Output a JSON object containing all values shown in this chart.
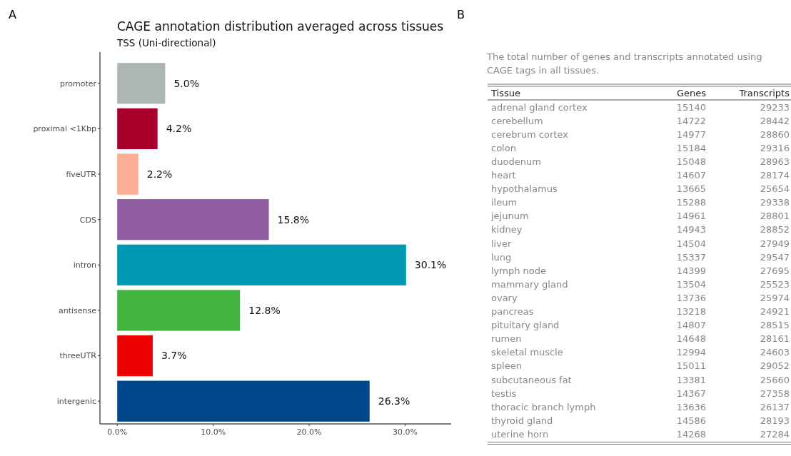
{
  "chart_data": [
    {
      "type": "bar",
      "orientation": "horizontal",
      "title": "CAGE annotation distribution averaged across tissues",
      "subtitle": "TSS (Uni-directional)",
      "annotations": [
        "A"
      ],
      "categories": [
        "promoter",
        "proximal <1Kbp",
        "fiveUTR",
        "CDS",
        "intron",
        "antisense",
        "threeUTR",
        "intergenic"
      ],
      "values": [
        5.0,
        4.2,
        2.2,
        15.8,
        30.1,
        12.8,
        3.7,
        26.3
      ],
      "colors": [
        "#adb5b5",
        "#a8002b",
        "#fbae92",
        "#905ea0",
        "#0099b4",
        "#42b540",
        "#ec0000",
        "#00468b"
      ],
      "value_labels": [
        "5.0%",
        "4.2%",
        "2.2%",
        "15.8%",
        "30.1%",
        "12.8%",
        "3.7%",
        "26.3%"
      ],
      "xlim": [
        -1.8,
        34.8
      ],
      "xticks": [
        {
          "value": 0,
          "label": "0.0%"
        },
        {
          "value": 10,
          "label": "10.0%"
        },
        {
          "value": 20,
          "label": "20.0%"
        },
        {
          "value": 30,
          "label": "30.0%"
        }
      ],
      "grid": false
    },
    {
      "type": "other",
      "title": "The total number of genes and transcripts annotated using CAGE tags in all tissues.",
      "annotations": [
        "B"
      ],
      "xlabel": "Tissue",
      "data_labels": true,
      "categories": [
        "adrenal gland cortex",
        "cerebellum",
        "cerebrum cortex",
        "colon",
        "duodenum",
        "heart",
        "hypothalamus",
        "ileum",
        "jejunum",
        "kidney",
        "liver",
        "lung",
        "lymph node",
        "mammary gland",
        "ovary",
        "pancreas",
        "pituitary gland",
        "rumen",
        "skeletal muscle",
        "spleen",
        "subcutaneous fat",
        "testis",
        "thoracic branch lymph",
        "thyroid gland",
        "uterine horn"
      ],
      "series": [
        {
          "name": "Genes",
          "values": [
            15140,
            14722,
            14977,
            15184,
            15048,
            14607,
            13665,
            15288,
            14961,
            14943,
            14504,
            15337,
            14399,
            13504,
            13736,
            13218,
            14807,
            14648,
            12994,
            15011,
            13381,
            14367,
            13636,
            14586,
            14268
          ]
        },
        {
          "name": "Transcripts",
          "values": [
            29233,
            28442,
            28860,
            29316,
            28963,
            28174,
            25654,
            29338,
            28801,
            28852,
            27949,
            29547,
            27695,
            25523,
            25974,
            24921,
            28515,
            28161,
            24603,
            29052,
            25660,
            27358,
            26137,
            28193,
            27284
          ]
        }
      ]
    }
  ]
}
